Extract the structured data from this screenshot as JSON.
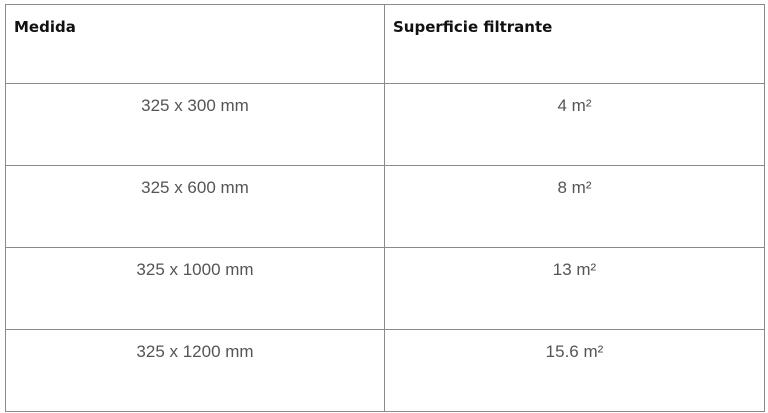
{
  "table": {
    "headers": [
      "Medida",
      "Superficie filtrante"
    ],
    "rows": [
      [
        "325 x 300 mm",
        "4 m²"
      ],
      [
        "325 x 600 mm",
        "8 m²"
      ],
      [
        "325 x 1000 mm",
        "13 m²"
      ],
      [
        "325 x 1200 mm",
        "15.6 m²"
      ]
    ]
  }
}
